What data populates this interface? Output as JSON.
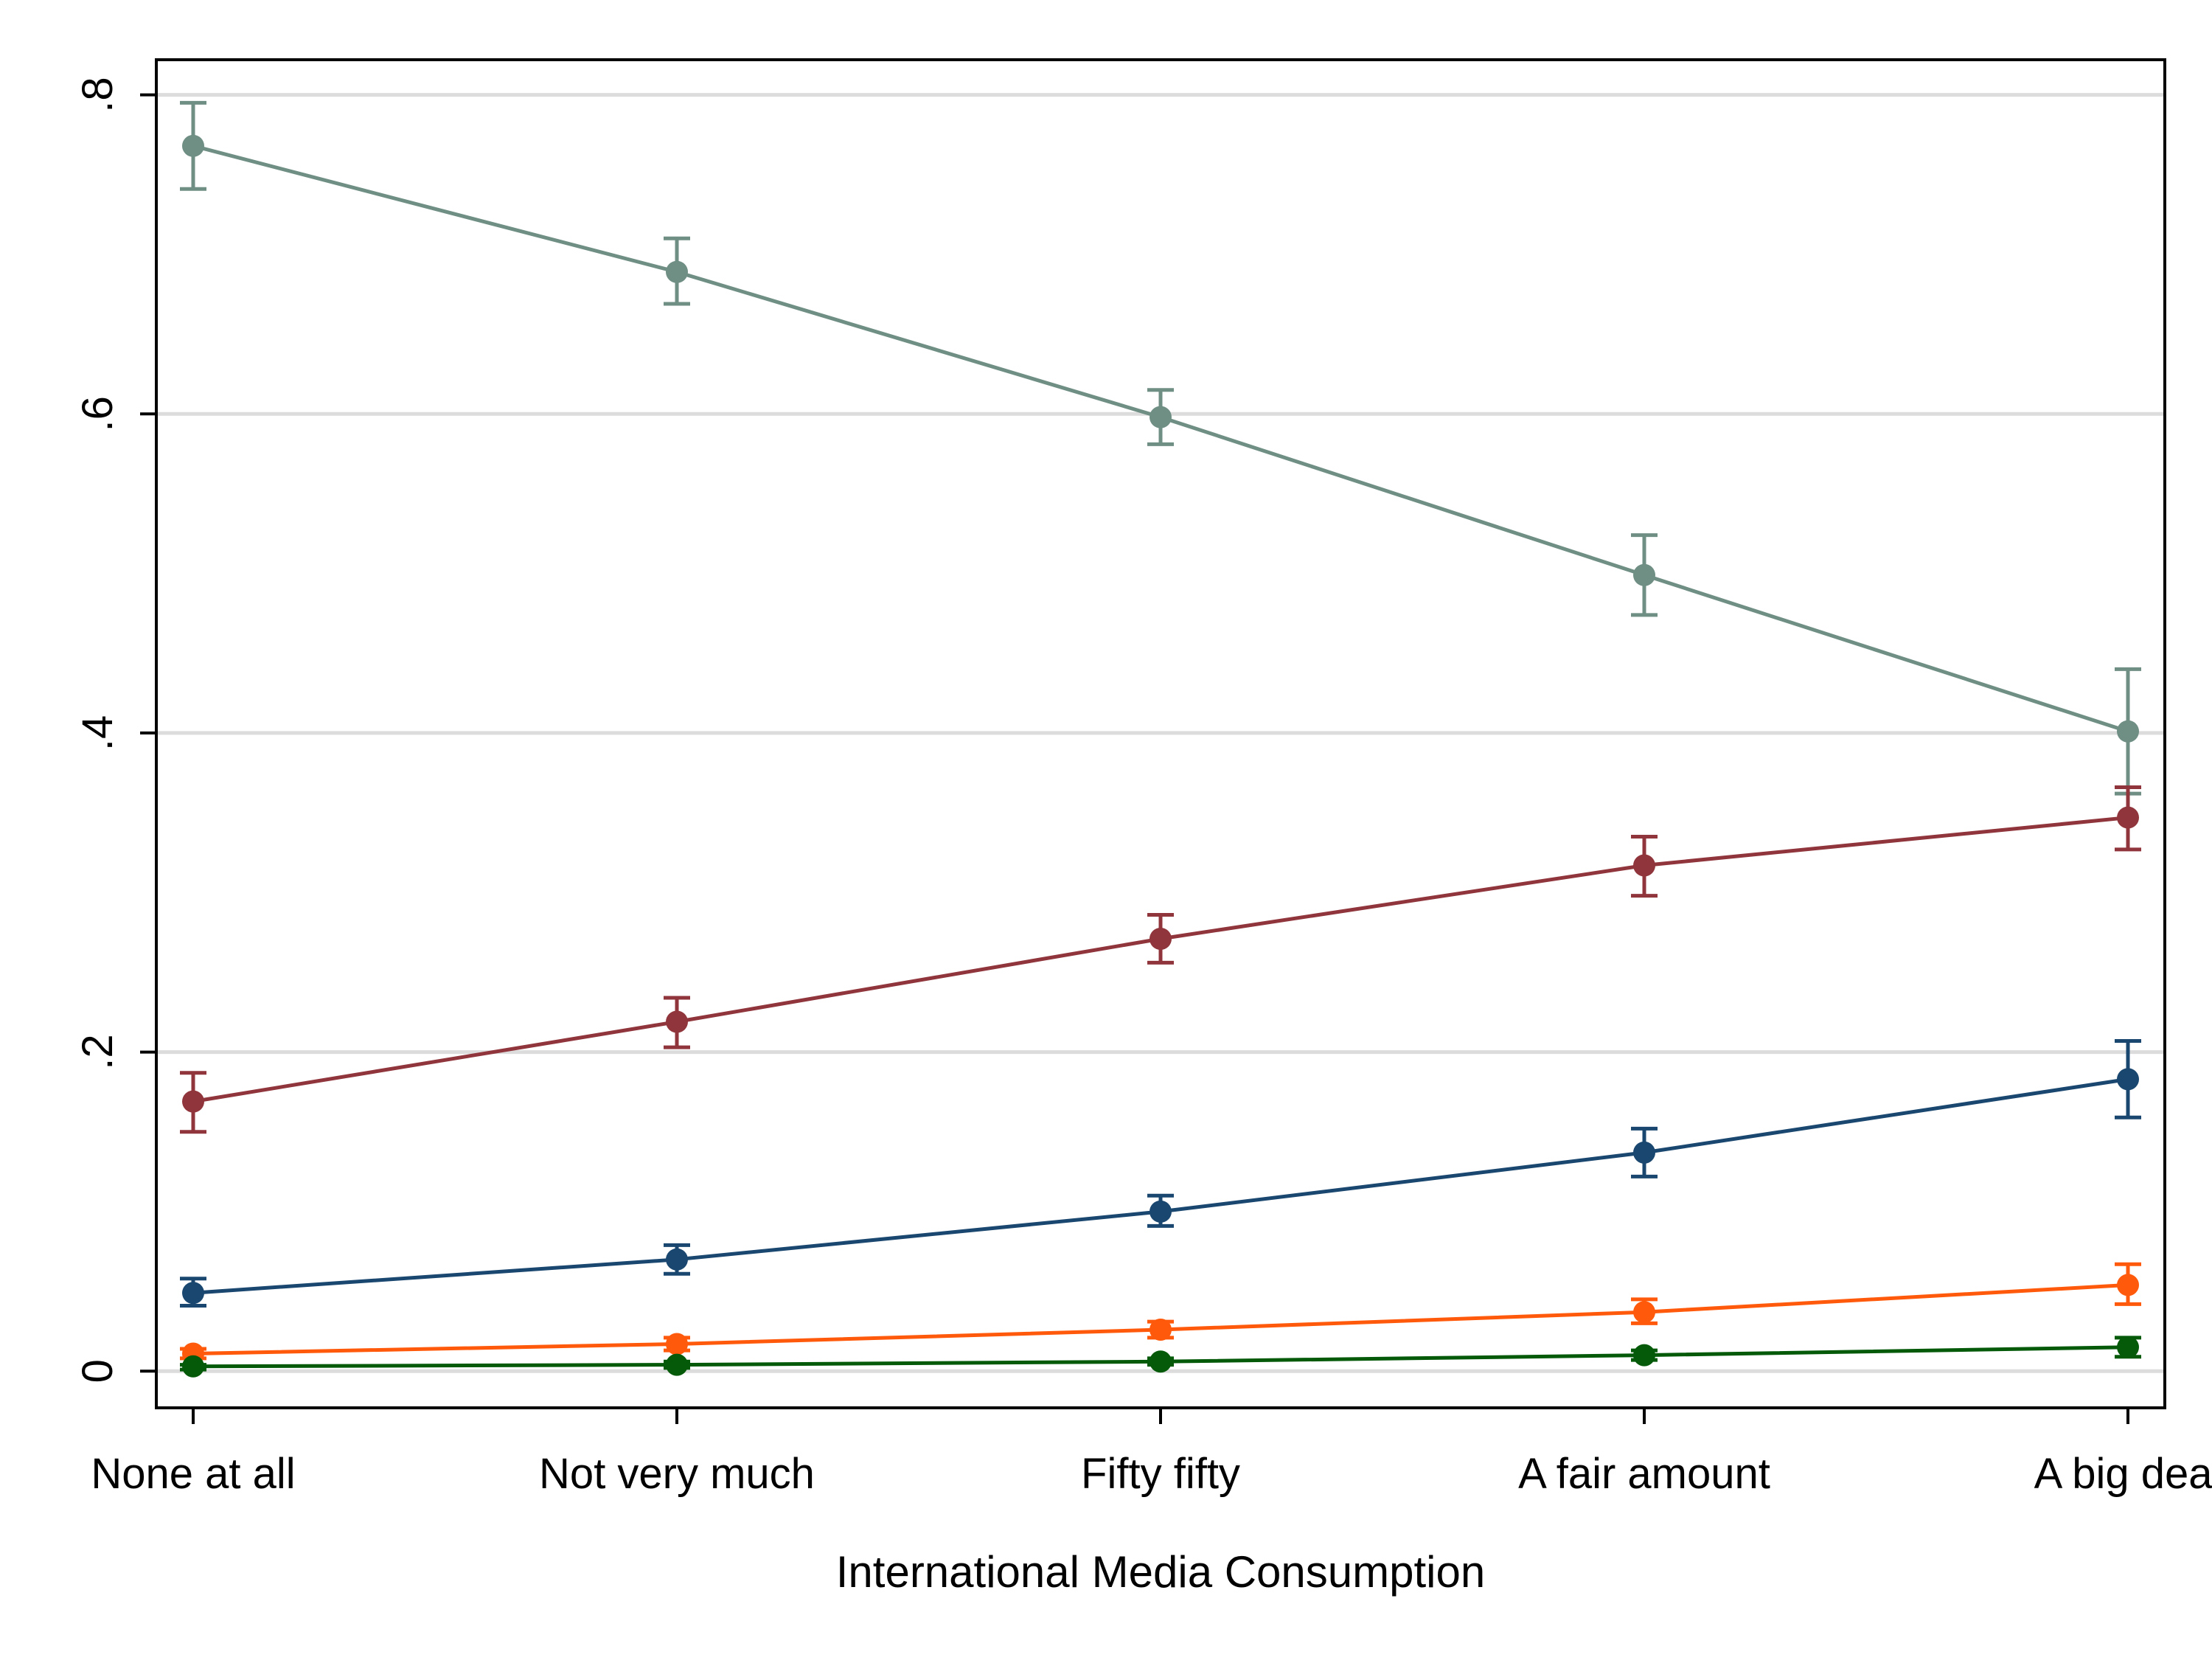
{
  "chart_data": {
    "type": "line",
    "title": "",
    "xlabel": "International Media Consumption",
    "ylabel": "",
    "categories": [
      "None at all",
      "Not very much",
      "Fifty fifty",
      "A fair amount",
      "A big deal"
    ],
    "ylim": [
      -0.023,
      0.822
    ],
    "y_ticks": [
      0,
      0.2,
      0.4,
      0.6,
      0.8
    ],
    "y_tick_labels": [
      "0",
      ".2",
      ".4",
      ".6",
      ".8"
    ],
    "grid": true,
    "legend": "none",
    "error_bars": true,
    "series": [
      {
        "color": "#6f8e84",
        "values": [
          0.768,
          0.689,
          0.598,
          0.499,
          0.401
        ],
        "lower": [
          0.741,
          0.669,
          0.581,
          0.474,
          0.362
        ],
        "upper": [
          0.795,
          0.71,
          0.615,
          0.524,
          0.44
        ]
      },
      {
        "color": "#90353b",
        "values": [
          0.169,
          0.219,
          0.271,
          0.317,
          0.347
        ],
        "lower": [
          0.15,
          0.203,
          0.256,
          0.298,
          0.327
        ],
        "upper": [
          0.187,
          0.234,
          0.286,
          0.335,
          0.366
        ]
      },
      {
        "color": "#1a476f",
        "values": [
          0.049,
          0.07,
          0.1,
          0.137,
          0.183
        ],
        "lower": [
          0.041,
          0.061,
          0.091,
          0.122,
          0.159
        ],
        "upper": [
          0.058,
          0.079,
          0.11,
          0.152,
          0.207
        ]
      },
      {
        "color": "#ff5a0b",
        "values": [
          0.011,
          0.017,
          0.026,
          0.037,
          0.054
        ],
        "lower": [
          0.008,
          0.013,
          0.021,
          0.03,
          0.042
        ],
        "upper": [
          0.014,
          0.021,
          0.031,
          0.045,
          0.067
        ]
      },
      {
        "color": "#055a0a",
        "values": [
          0.003,
          0.004,
          0.006,
          0.01,
          0.015
        ],
        "lower": [
          0.001,
          0.002,
          0.004,
          0.007,
          0.009
        ],
        "upper": [
          0.004,
          0.006,
          0.008,
          0.013,
          0.021
        ]
      }
    ]
  }
}
